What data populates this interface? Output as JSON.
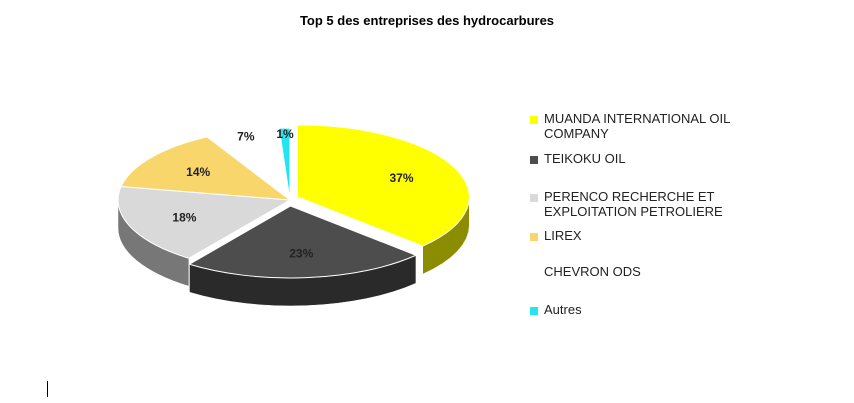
{
  "chart_data": {
    "type": "pie",
    "title": "Top 5 des entreprises des hydrocarbures",
    "slices": [
      {
        "label": "MUANDA INTERNATIONAL OIL COMPANY",
        "value": 37,
        "display": "37%",
        "color": "#FFFF00"
      },
      {
        "label": "TEIKOKU OIL",
        "value": 23,
        "display": "23%",
        "color": "#4D4D4D"
      },
      {
        "label": "PERENCO RECHERCHE ET EXPLOITATION PETROLIERE",
        "value": 18,
        "display": "18%",
        "color": "#D9D9D9"
      },
      {
        "label": "LIREX",
        "value": 14,
        "display": "14%",
        "color": "#F9D66B"
      },
      {
        "label": "CHEVRON ODS",
        "value": 7,
        "display": "7%",
        "color": "#FFFFFF"
      },
      {
        "label": "Autres",
        "value": 1,
        "display": "1%",
        "color": "#22E5F0"
      }
    ],
    "legend_position": "right",
    "style": "3d-exploded"
  }
}
